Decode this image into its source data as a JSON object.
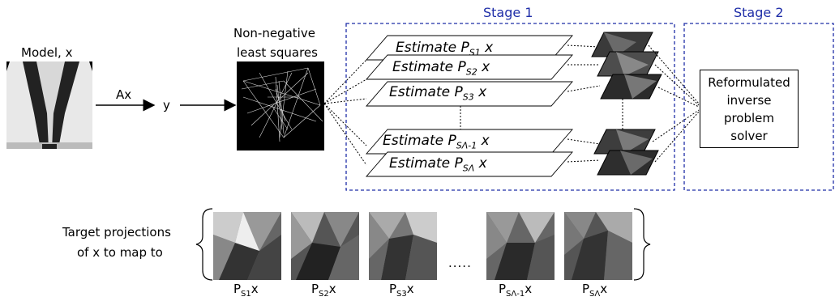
{
  "model_label": "Model, x",
  "operator_label": "Ax",
  "output_label": "y",
  "nnls_label_line1": "Non-negative",
  "nnls_label_line2": "least squares",
  "stage1_title": "Stage 1",
  "stage2_title": "Stage 2",
  "estimate_word": "Estimate",
  "estimates": [
    {
      "sub": "S1",
      "suffix": "x"
    },
    {
      "sub": "S2",
      "suffix": "x"
    },
    {
      "sub": "S3",
      "suffix": "x"
    },
    {
      "sub": "SΛ-1",
      "suffix": "x"
    },
    {
      "sub": "SΛ",
      "suffix": "x"
    }
  ],
  "solver_line1": "Reformulated",
  "solver_line2": "inverse problem",
  "solver_line3": "solver",
  "target_line1": "Target projections",
  "target_line2": "of x to map to",
  "ellipsis": ".....",
  "projections": [
    {
      "sub": "S1",
      "suffix": "x"
    },
    {
      "sub": "S2",
      "suffix": "x"
    },
    {
      "sub": "S3",
      "suffix": "x"
    },
    {
      "sub": "SΛ-1",
      "suffix": "x"
    },
    {
      "sub": "SΛ",
      "suffix": "x"
    }
  ],
  "colors": {
    "stage_border": "#1f2ea8",
    "stage_text": "#1f2ea8"
  }
}
